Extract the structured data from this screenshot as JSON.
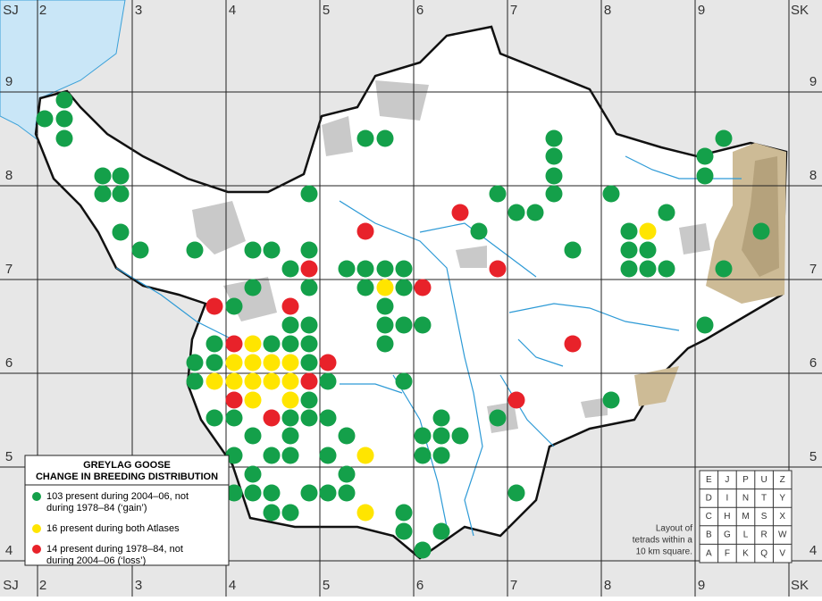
{
  "grid": {
    "columns": [
      "SJ",
      "2",
      "3",
      "4",
      "5",
      "6",
      "7",
      "8",
      "9",
      "SK"
    ],
    "rows": [
      "9",
      "8",
      "7",
      "6",
      "5",
      "4"
    ]
  },
  "legend": {
    "title": [
      "GREYLAG GOOSE",
      "CHANGE IN BREEDING DISTRIBUTION"
    ],
    "entries": [
      {
        "color": "#14a04a",
        "lines": [
          "103 present during 2004–06, not",
          "during 1978–84 (‘gain’)"
        ]
      },
      {
        "color": "#ffe500",
        "lines": [
          "16 present during both Atlases"
        ]
      },
      {
        "color": "#e8222a",
        "lines": [
          "14 present during 1978–84, not",
          "during 2004–06 (‘loss’)"
        ]
      }
    ]
  },
  "tetrad_layout": {
    "rows": [
      [
        "E",
        "J",
        "P",
        "U",
        "Z"
      ],
      [
        "D",
        "I",
        "N",
        "T",
        "Y"
      ],
      [
        "C",
        "H",
        "M",
        "S",
        "X"
      ],
      [
        "B",
        "G",
        "L",
        "R",
        "W"
      ],
      [
        "A",
        "F",
        "K",
        "Q",
        "V"
      ]
    ],
    "caption": [
      "Layout of",
      "tetrads within a",
      "10 km square."
    ]
  }
}
